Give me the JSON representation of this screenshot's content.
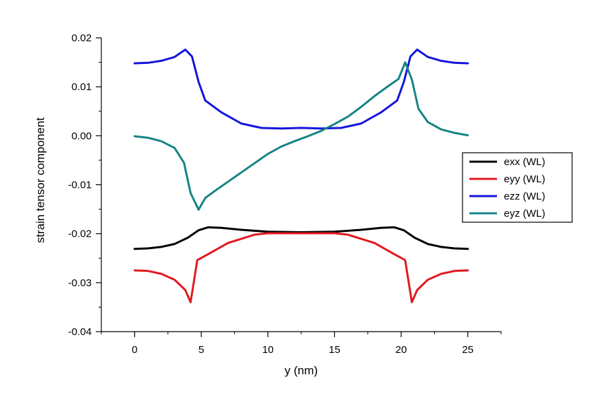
{
  "chart_data": {
    "type": "line",
    "xlabel": "y (nm)",
    "ylabel": "strain tensor component",
    "xlim": [
      -2.5,
      27.5
    ],
    "ylim": [
      -0.04,
      0.02
    ],
    "xticks": [
      0,
      5,
      10,
      15,
      20,
      25
    ],
    "xtick_labels": [
      "0",
      "5",
      "10",
      "15",
      "20",
      "25"
    ],
    "yticks": [
      -0.04,
      -0.03,
      -0.02,
      -0.01,
      0.0,
      0.01,
      0.02
    ],
    "ytick_labels": [
      "-0.04",
      "-0.03",
      "-0.02",
      "-0.01",
      "0.00",
      "0.01",
      "0.02"
    ],
    "grid": false,
    "legend_position": "right",
    "series": [
      {
        "name": "exx (WL)",
        "color": "#000000",
        "points": [
          [
            0,
            -0.0231
          ],
          [
            1,
            -0.023
          ],
          [
            2,
            -0.0227
          ],
          [
            3,
            -0.0221
          ],
          [
            4,
            -0.0208
          ],
          [
            4.8,
            -0.0193
          ],
          [
            5.5,
            -0.0187
          ],
          [
            6.5,
            -0.0188
          ],
          [
            8,
            -0.0192
          ],
          [
            10,
            -0.0196
          ],
          [
            12.5,
            -0.0197
          ],
          [
            15,
            -0.0196
          ],
          [
            17,
            -0.0192
          ],
          [
            18.5,
            -0.0188
          ],
          [
            19.5,
            -0.0187
          ],
          [
            20.2,
            -0.0193
          ],
          [
            21,
            -0.0208
          ],
          [
            22,
            -0.0221
          ],
          [
            23,
            -0.0227
          ],
          [
            24,
            -0.023
          ],
          [
            25,
            -0.0231
          ]
        ]
      },
      {
        "name": "eyy (WL)",
        "color": "#e0191f",
        "points": [
          [
            0,
            -0.0275
          ],
          [
            1,
            -0.0276
          ],
          [
            2,
            -0.0282
          ],
          [
            3,
            -0.0294
          ],
          [
            3.8,
            -0.0315
          ],
          [
            4.2,
            -0.034
          ],
          [
            4.7,
            -0.0254
          ],
          [
            5.5,
            -0.0242
          ],
          [
            7,
            -0.0219
          ],
          [
            9,
            -0.0202
          ],
          [
            10,
            -0.0199
          ],
          [
            12.5,
            -0.0199
          ],
          [
            15,
            -0.0199
          ],
          [
            16,
            -0.0202
          ],
          [
            18,
            -0.0219
          ],
          [
            19.5,
            -0.0242
          ],
          [
            20.3,
            -0.0254
          ],
          [
            20.8,
            -0.034
          ],
          [
            21.2,
            -0.0315
          ],
          [
            22,
            -0.0294
          ],
          [
            23,
            -0.0282
          ],
          [
            24,
            -0.0276
          ],
          [
            25,
            -0.0275
          ]
        ]
      },
      {
        "name": "ezz (WL)",
        "color": "#1414dc",
        "points": [
          [
            0,
            0.0148
          ],
          [
            1,
            0.0149
          ],
          [
            2,
            0.0153
          ],
          [
            3,
            0.0161
          ],
          [
            3.8,
            0.0176
          ],
          [
            4.3,
            0.0162
          ],
          [
            4.8,
            0.011
          ],
          [
            5.3,
            0.0072
          ],
          [
            6.5,
            0.0048
          ],
          [
            8,
            0.0025
          ],
          [
            9.5,
            0.0016
          ],
          [
            11,
            0.0015
          ],
          [
            12.5,
            0.0016
          ],
          [
            14,
            0.0015
          ],
          [
            15.5,
            0.0016
          ],
          [
            17,
            0.0025
          ],
          [
            18.5,
            0.0048
          ],
          [
            19.7,
            0.0072
          ],
          [
            20.2,
            0.011
          ],
          [
            20.7,
            0.0162
          ],
          [
            21.2,
            0.0176
          ],
          [
            22,
            0.0161
          ],
          [
            23,
            0.0153
          ],
          [
            24,
            0.0149
          ],
          [
            25,
            0.0148
          ]
        ]
      },
      {
        "name": "eyz (WL)",
        "color": "#168484",
        "points": [
          [
            0,
            -0.0001
          ],
          [
            1,
            -0.0004
          ],
          [
            2,
            -0.0011
          ],
          [
            3,
            -0.0025
          ],
          [
            3.7,
            -0.0055
          ],
          [
            4.2,
            -0.0117
          ],
          [
            4.8,
            -0.0151
          ],
          [
            5.3,
            -0.0127
          ],
          [
            6,
            -0.0113
          ],
          [
            7,
            -0.0094
          ],
          [
            8,
            -0.0075
          ],
          [
            9,
            -0.0056
          ],
          [
            10,
            -0.0037
          ],
          [
            11,
            -0.0022
          ],
          [
            12,
            -0.0011
          ],
          [
            13,
            -0.0001
          ],
          [
            14,
            0.001
          ],
          [
            15,
            0.0024
          ],
          [
            16,
            0.0039
          ],
          [
            17,
            0.0059
          ],
          [
            18,
            0.0081
          ],
          [
            19,
            0.0101
          ],
          [
            19.8,
            0.0116
          ],
          [
            20.3,
            0.015
          ],
          [
            20.8,
            0.0115
          ],
          [
            21.3,
            0.0055
          ],
          [
            22,
            0.0028
          ],
          [
            23,
            0.0013
          ],
          [
            24,
            0.0006
          ],
          [
            25,
            0.0001
          ]
        ]
      }
    ]
  }
}
